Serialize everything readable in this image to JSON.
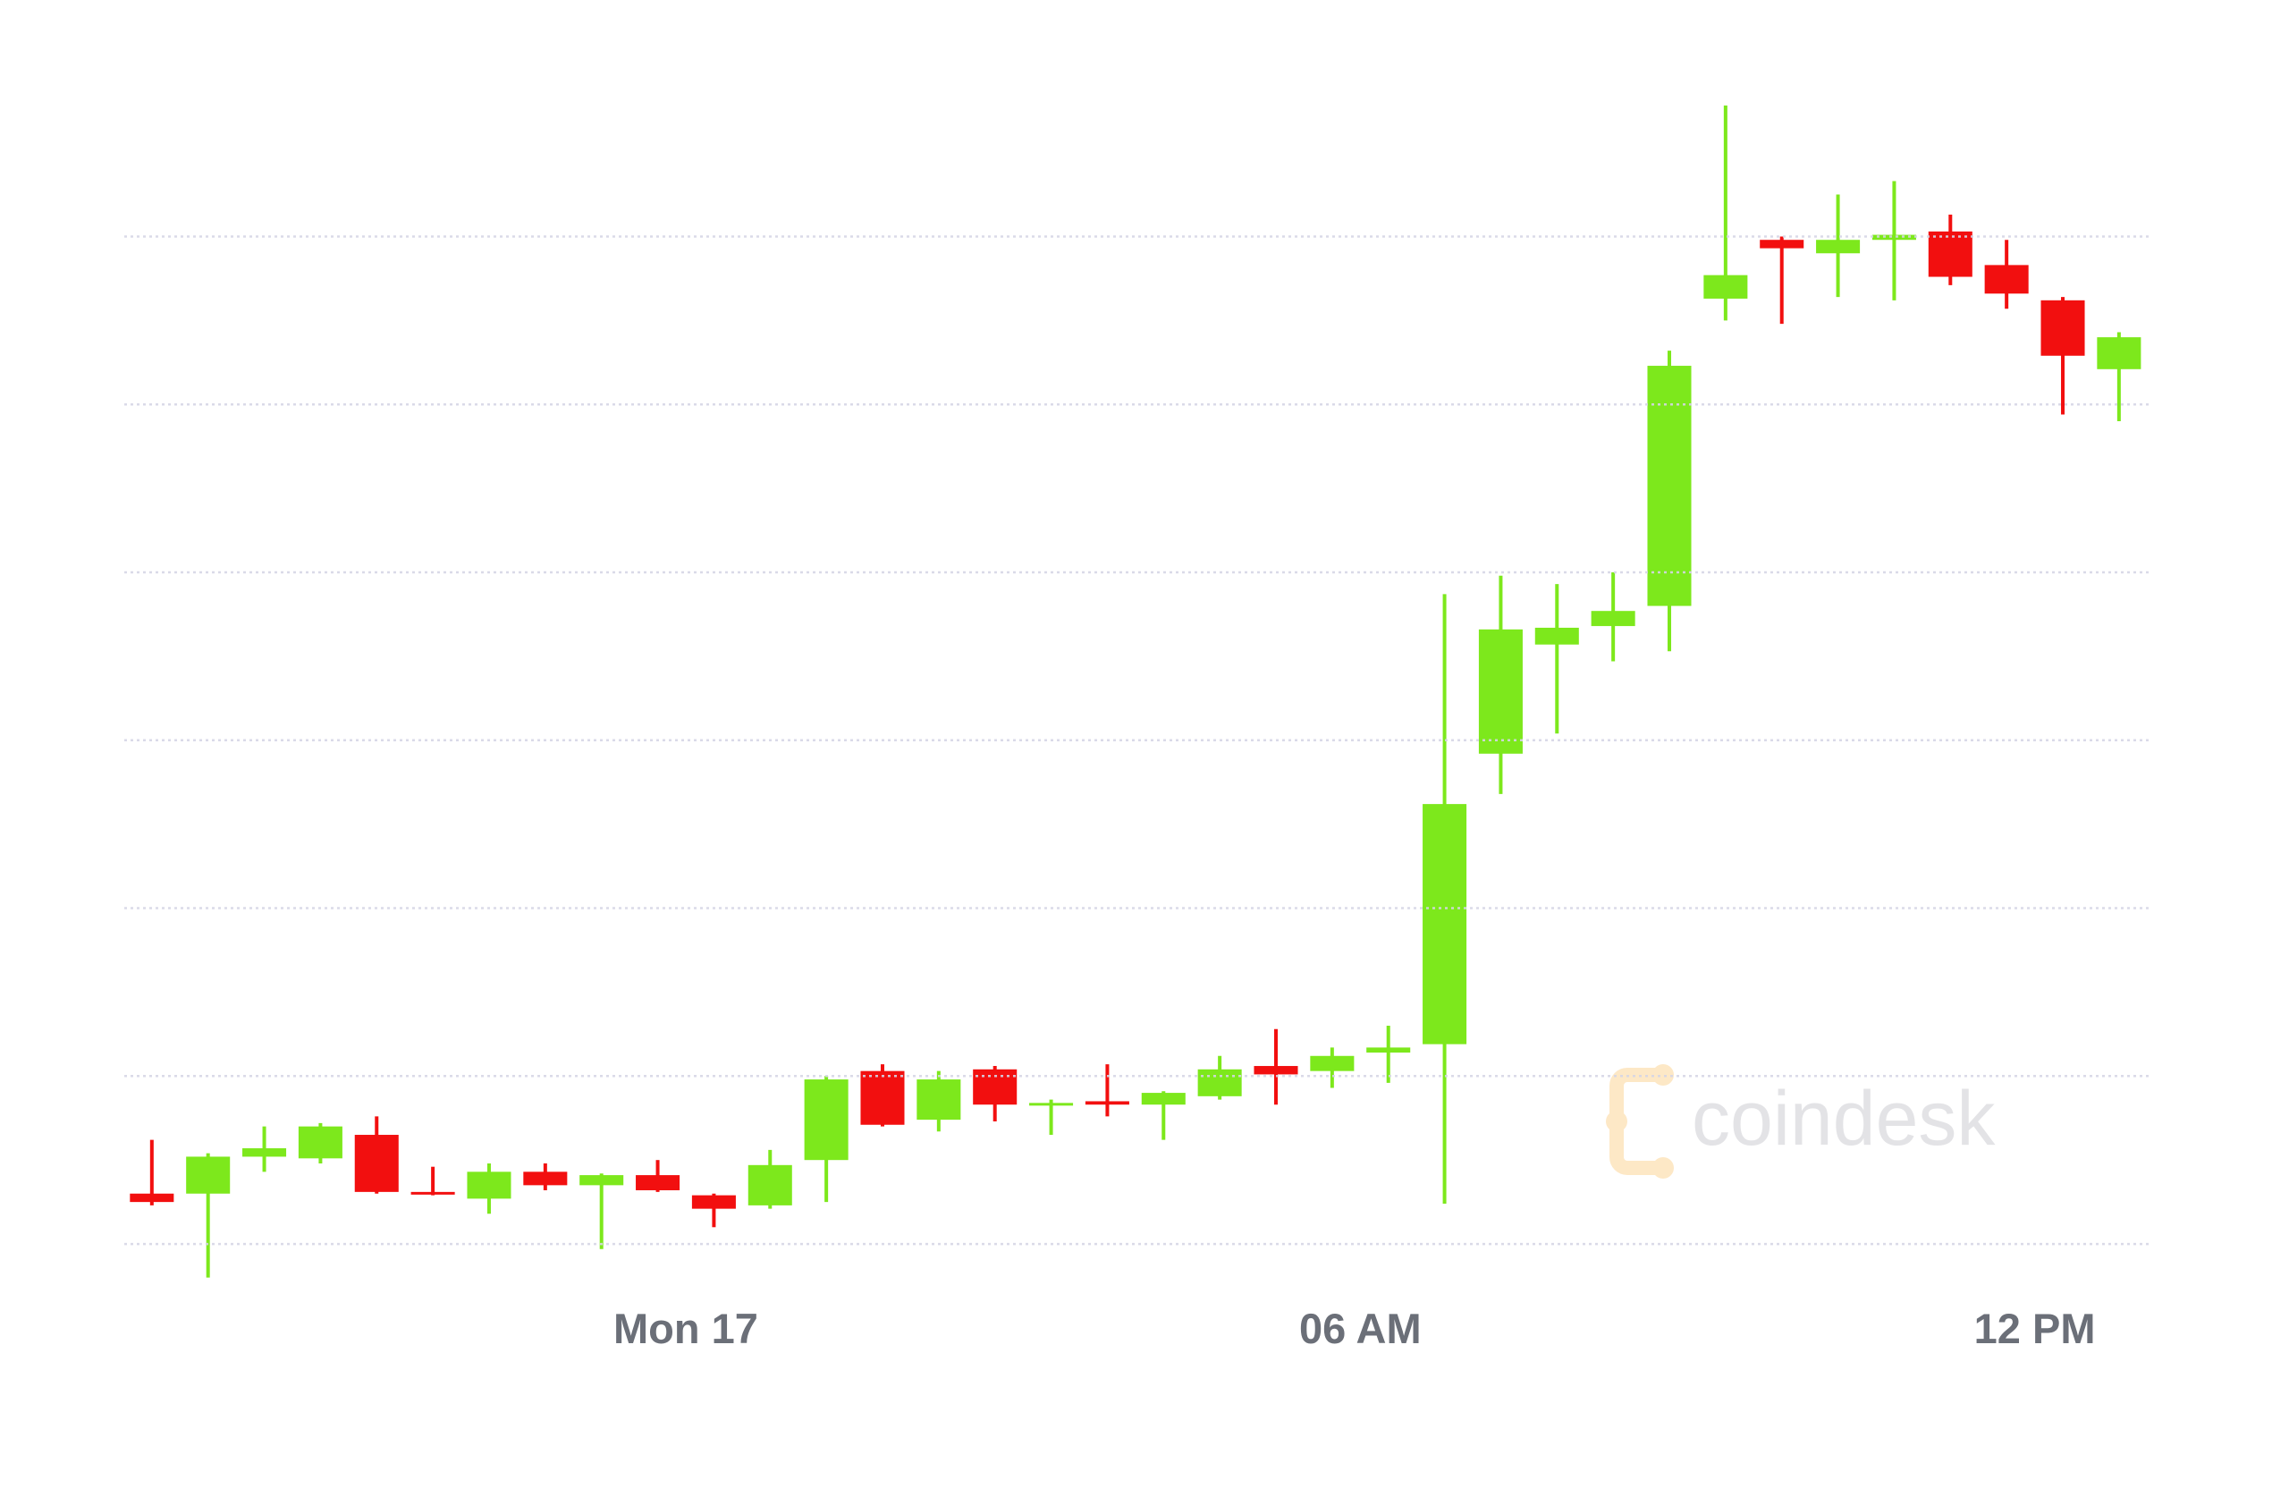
{
  "chart_data": {
    "type": "candlestick",
    "watermark": "coindesk",
    "x": [
      0,
      1,
      2,
      3,
      4,
      5,
      6,
      7,
      8,
      9,
      10,
      11,
      12,
      13,
      14,
      15,
      16,
      17,
      18,
      19,
      20,
      21,
      22,
      23,
      24,
      25,
      26,
      27,
      28,
      29,
      30,
      31,
      32,
      33,
      34,
      35
    ],
    "open": [
      0.3,
      0.3,
      0.52,
      0.51,
      0.65,
      0.31,
      0.27,
      0.43,
      0.35,
      0.41,
      0.29,
      0.23,
      0.5,
      1.03,
      0.74,
      1.04,
      0.83,
      0.85,
      0.83,
      0.88,
      1.06,
      1.03,
      1.14,
      1.19,
      2.92,
      3.57,
      3.68,
      3.8,
      5.63,
      5.98,
      5.9,
      5.98,
      6.03,
      5.83,
      5.62,
      5.21
    ],
    "high": [
      0.62,
      0.54,
      0.7,
      0.72,
      0.76,
      0.46,
      0.48,
      0.48,
      0.42,
      0.5,
      0.3,
      0.56,
      1.0,
      1.07,
      1.03,
      1.06,
      0.86,
      1.07,
      0.91,
      1.12,
      1.28,
      1.17,
      1.3,
      3.87,
      3.98,
      3.93,
      4.0,
      5.32,
      6.78,
      6.0,
      6.25,
      6.33,
      6.13,
      5.98,
      5.64,
      5.43
    ],
    "low": [
      0.23,
      -0.2,
      0.43,
      0.48,
      0.3,
      0.29,
      0.18,
      0.32,
      -0.03,
      0.31,
      0.1,
      0.21,
      0.25,
      0.7,
      0.67,
      0.73,
      0.65,
      0.76,
      0.62,
      0.86,
      0.83,
      0.93,
      0.96,
      0.24,
      2.68,
      3.04,
      3.47,
      3.53,
      5.5,
      5.48,
      5.64,
      5.62,
      5.71,
      5.57,
      4.94,
      4.9
    ],
    "close": [
      0.25,
      0.52,
      0.57,
      0.7,
      0.31,
      0.3,
      0.43,
      0.35,
      0.41,
      0.32,
      0.21,
      0.47,
      0.98,
      0.71,
      0.98,
      0.83,
      0.84,
      0.83,
      0.9,
      1.04,
      1.01,
      1.12,
      1.17,
      2.62,
      3.66,
      3.67,
      3.77,
      5.23,
      5.77,
      5.93,
      5.98,
      6.01,
      5.76,
      5.66,
      5.29,
      5.4
    ],
    "up_color": "#7de81c",
    "down_color": "#f20f0f",
    "xlim": [
      -0.5,
      35.5
    ],
    "xticks": [
      {
        "value": 9.5,
        "label": "Mon 17"
      },
      {
        "value": 21.5,
        "label": "06 AM"
      },
      {
        "value": 33.5,
        "label": "12 PM"
      }
    ],
    "ylim": [
      -0.3,
      7.0
    ],
    "yticks": [
      0,
      1,
      2,
      3,
      4,
      5,
      6
    ],
    "grid": true
  }
}
